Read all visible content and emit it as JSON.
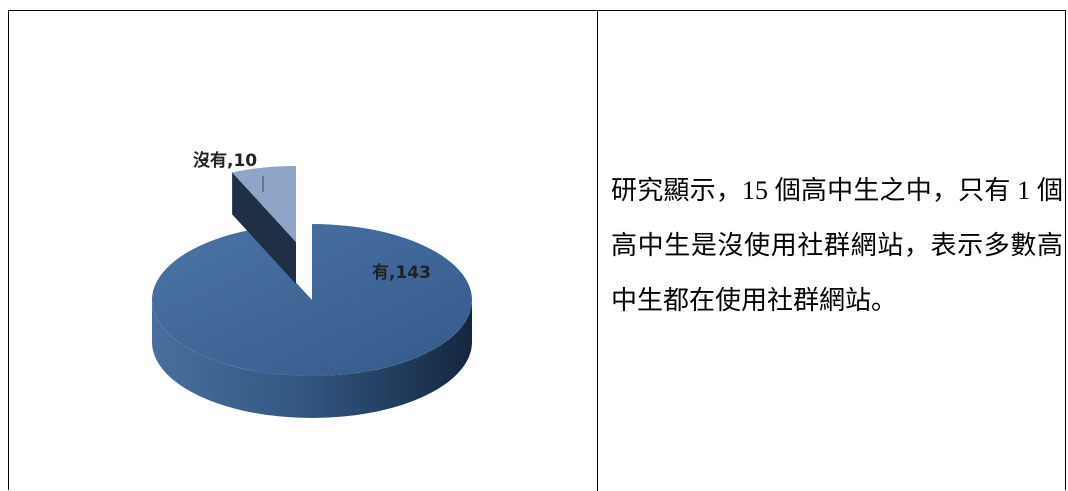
{
  "chart_data": {
    "type": "pie",
    "categories": [
      "有",
      "沒有"
    ],
    "values": [
      143,
      10
    ],
    "value_labels": [
      "有,143",
      "沒有,10"
    ],
    "colors": [
      "#3f6698",
      "#8ea5c8"
    ]
  },
  "text": "研究顯示，15 個高中生之中，只有 1 個高中生是沒使用社群網站，表示多數高中生都在使用社群網站。"
}
